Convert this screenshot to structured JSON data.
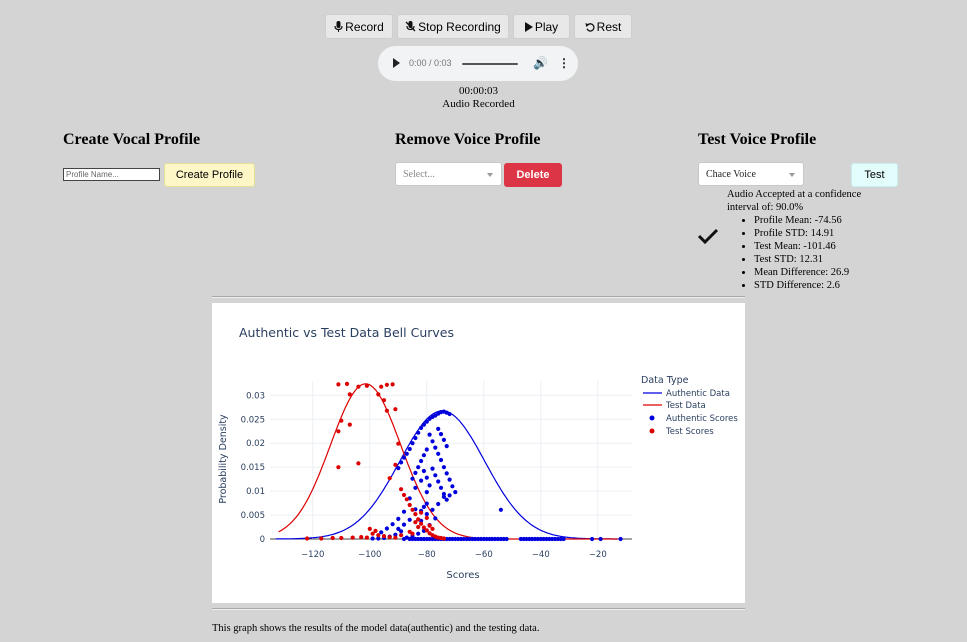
{
  "toolbar": {
    "record": "Record",
    "stop": "Stop Recording",
    "play": "Play",
    "reset": "Rest"
  },
  "audio_player": {
    "time": "0:00 / 0:03"
  },
  "recording": {
    "elapsed": "00:00:03",
    "status": "Audio Recorded"
  },
  "create_profile": {
    "heading": "Create Vocal Profile",
    "placeholder": "Profile Name...",
    "button": "Create Profile"
  },
  "remove_profile": {
    "heading": "Remove Voice Profile",
    "select_value": "Select...",
    "button": "Delete"
  },
  "test_profile": {
    "heading": "Test Voice Profile",
    "select_value": "Chace Voice",
    "button": "Test",
    "result_line1": "Audio Accepted at a confidence",
    "result_line2": "interval of: 90.0%",
    "stats": [
      "Profile Mean: -74.56",
      "Profile STD: 14.91",
      "Test Mean: -101.46",
      "Test STD: 12.31",
      "Mean Difference: 26.9",
      "STD Difference: 2.6"
    ]
  },
  "caption": "This graph shows the results of the model data(authentic) and the testing data.",
  "colors": {
    "authentic": "#0000dd",
    "test": "#dd0000",
    "delete": "#dc3545"
  },
  "chart_data": {
    "type": "line",
    "title": "Authentic vs Test Data Bell Curves",
    "xlabel": "Scores",
    "ylabel": "Probability Density",
    "xlim": [
      -135,
      -8
    ],
    "ylim": [
      0,
      0.033
    ],
    "x_ticks": [
      -120,
      -100,
      -80,
      -60,
      -40,
      -20
    ],
    "x_tick_labels": [
      "−120",
      "−100",
      "−80",
      "−60",
      "−40",
      "−20"
    ],
    "y_ticks": [
      0,
      0.005,
      0.01,
      0.015,
      0.02,
      0.025,
      0.03
    ],
    "y_tick_labels": [
      "0",
      "0.005",
      "0.01",
      "0.015",
      "0.02",
      "0.025",
      "0.03"
    ],
    "grid": true,
    "legend_title": "Data Type",
    "legend_position": "right",
    "series": [
      {
        "name": "Authentic Data",
        "kind": "normal-curve",
        "mean": -74.56,
        "std": 14.91,
        "x_range": [
          -133,
          -13
        ],
        "color": "#0000dd"
      },
      {
        "name": "Test Data",
        "kind": "normal-curve",
        "mean": -101.46,
        "std": 12.31,
        "x_range": [
          -132,
          -13
        ],
        "color": "#dd0000"
      },
      {
        "name": "Authentic Scores",
        "kind": "scatter",
        "color": "#0000dd",
        "points": [
          [
            -88,
            0.0
          ],
          [
            -86,
            0.0
          ],
          [
            -85,
            0.0
          ],
          [
            -84,
            0.0
          ],
          [
            -83,
            0.0
          ],
          [
            -82,
            0.0
          ],
          [
            -81,
            0.0
          ],
          [
            -80,
            0.0
          ],
          [
            -79,
            0.0
          ],
          [
            -78,
            0.0
          ],
          [
            -77,
            0.0
          ],
          [
            -76,
            0.0
          ],
          [
            -75,
            0.0
          ],
          [
            -74,
            0.0
          ],
          [
            -73,
            0.0
          ],
          [
            -72,
            0.0
          ],
          [
            -71,
            0.0
          ],
          [
            -70,
            0.0
          ],
          [
            -69,
            0.0
          ],
          [
            -68,
            0.0
          ],
          [
            -67,
            0.0
          ],
          [
            -66,
            0.0
          ],
          [
            -65,
            0.0
          ],
          [
            -64,
            0.0
          ],
          [
            -63,
            0.0
          ],
          [
            -62,
            0.0
          ],
          [
            -61,
            0.0
          ],
          [
            -60,
            0.0
          ],
          [
            -59,
            0.0
          ],
          [
            -58,
            0.0
          ],
          [
            -57,
            0.0
          ],
          [
            -56,
            0.0
          ],
          [
            -55,
            0.0
          ],
          [
            -54,
            0.0
          ],
          [
            -53,
            0.0
          ],
          [
            -52,
            0.0
          ],
          [
            -47,
            0.0
          ],
          [
            -46,
            0.0
          ],
          [
            -45,
            0.0
          ],
          [
            -44,
            0.0
          ],
          [
            -43,
            0.0
          ],
          [
            -42,
            0.0
          ],
          [
            -41,
            0.0
          ],
          [
            -40,
            0.0
          ],
          [
            -39,
            0.0
          ],
          [
            -38,
            0.0
          ],
          [
            -37,
            0.0
          ],
          [
            -36,
            0.0
          ],
          [
            -35,
            0.0
          ],
          [
            -34,
            0.0
          ],
          [
            -33,
            0.0
          ],
          [
            -32,
            0.0
          ],
          [
            -22,
            0.0
          ],
          [
            -19,
            0.0
          ],
          [
            -12,
            0.0
          ],
          [
            -86,
            0.0085
          ],
          [
            -84,
            0.0107
          ],
          [
            -82,
            0.0122
          ],
          [
            -80,
            0.0098
          ],
          [
            -88,
            0.0057
          ],
          [
            -90,
            0.0042
          ],
          [
            -92,
            0.0031
          ],
          [
            -94,
            0.0022
          ],
          [
            -96,
            0.0014
          ],
          [
            -84,
            0.0062
          ],
          [
            -86,
            0.004
          ],
          [
            -88,
            0.003
          ],
          [
            -90,
            0.0021
          ],
          [
            -82,
            0.0038
          ],
          [
            -80,
            0.0052
          ],
          [
            -78,
            0.0061
          ],
          [
            -76,
            0.0073
          ],
          [
            -74,
            0.0088
          ],
          [
            -72,
            0.0091
          ],
          [
            -77,
            0.0043
          ],
          [
            -79,
            0.0029
          ],
          [
            -81,
            0.0017
          ],
          [
            -83,
            0.0011
          ],
          [
            -85,
            0.0006
          ],
          [
            -87,
            0.0003
          ],
          [
            -89,
            0.0016
          ],
          [
            -91,
            0.0009
          ],
          [
            -93,
            0.0005
          ],
          [
            -95,
            0.0002
          ],
          [
            -97,
            0.0001
          ],
          [
            -99,
            0.0001
          ],
          [
            -76,
            0.0262
          ],
          [
            -75,
            0.0265
          ],
          [
            -74,
            0.0266
          ],
          [
            -73,
            0.0264
          ],
          [
            -72,
            0.0261
          ],
          [
            -77,
            0.0258
          ],
          [
            -78,
            0.0255
          ],
          [
            -79,
            0.0251
          ],
          [
            -80,
            0.0245
          ],
          [
            -81,
            0.0239
          ],
          [
            -82,
            0.0232
          ],
          [
            -83,
            0.0222
          ],
          [
            -84,
            0.0211
          ],
          [
            -85,
            0.02
          ],
          [
            -86,
            0.0188
          ],
          [
            -87,
            0.0178
          ],
          [
            -88,
            0.017
          ],
          [
            -89,
            0.016
          ],
          [
            -90,
            0.0148
          ],
          [
            -79,
            0.0218
          ],
          [
            -78,
            0.0204
          ],
          [
            -77,
            0.0191
          ],
          [
            -76,
            0.0178
          ],
          [
            -75,
            0.0165
          ],
          [
            -74,
            0.015
          ],
          [
            -73,
            0.0137
          ],
          [
            -72,
            0.0124
          ],
          [
            -71,
            0.011
          ],
          [
            -70,
            0.0098
          ],
          [
            -76,
            0.023
          ],
          [
            -75,
            0.0219
          ],
          [
            -74,
            0.0207
          ],
          [
            -73,
            0.0194
          ],
          [
            -80,
            0.0187
          ],
          [
            -81,
            0.0175
          ],
          [
            -82,
            0.0163
          ],
          [
            -83,
            0.015
          ],
          [
            -84,
            0.0138
          ],
          [
            -85,
            0.0126
          ],
          [
            -78,
            0.0147
          ],
          [
            -77,
            0.0133
          ],
          [
            -76,
            0.012
          ],
          [
            -75,
            0.0107
          ],
          [
            -74,
            0.0094
          ],
          [
            -73,
            0.0082
          ],
          [
            -80,
            0.0074
          ],
          [
            -81,
            0.0067
          ],
          [
            -82,
            0.0059
          ],
          [
            -79,
            0.0112
          ],
          [
            -80,
            0.0128
          ],
          [
            -81,
            0.0142
          ],
          [
            -54,
            0.0061
          ]
        ]
      },
      {
        "name": "Test Scores",
        "kind": "scatter",
        "color": "#dd0000",
        "points": [
          [
            -111,
            0.0323
          ],
          [
            -108,
            0.0324
          ],
          [
            -104,
            0.0318
          ],
          [
            -101,
            0.032
          ],
          [
            -96,
            0.0318
          ],
          [
            -94,
            0.0322
          ],
          [
            -92,
            0.0323
          ],
          [
            -107,
            0.0302
          ],
          [
            -97,
            0.0302
          ],
          [
            -95,
            0.029
          ],
          [
            -110,
            0.0247
          ],
          [
            -107,
            0.0239
          ],
          [
            -111,
            0.0225
          ],
          [
            -94,
            0.0268
          ],
          [
            -91,
            0.0271
          ],
          [
            -104,
            0.0158
          ],
          [
            -111,
            0.015
          ],
          [
            -93,
            0.0127
          ],
          [
            -91,
            0.0155
          ],
          [
            -90,
            0.0199
          ],
          [
            -89,
            0.0104
          ],
          [
            -88,
            0.0092
          ],
          [
            -87,
            0.0083
          ],
          [
            -86,
            0.0071
          ],
          [
            -85,
            0.0061
          ],
          [
            -84,
            0.0052
          ],
          [
            -83,
            0.0041
          ],
          [
            -82,
            0.0032
          ],
          [
            -81,
            0.0024
          ],
          [
            -80,
            0.0018
          ],
          [
            -79,
            0.0012
          ],
          [
            -78,
            0.0008
          ],
          [
            -77,
            0.0005
          ],
          [
            -76,
            0.0003
          ],
          [
            -75,
            0.0002
          ],
          [
            -74,
            0.0001
          ],
          [
            -122,
            0.0001
          ],
          [
            -117,
            0.0001
          ],
          [
            -113,
            0.0002
          ],
          [
            -110,
            0.0002
          ],
          [
            -106,
            0.0003
          ],
          [
            -103,
            0.0004
          ],
          [
            -101,
            0.0003
          ],
          [
            -100,
            0.0021
          ],
          [
            -98,
            0.0017
          ],
          [
            -99,
            0.0011
          ],
          [
            -97,
            0.0008
          ],
          [
            -95,
            0.0006
          ],
          [
            -93,
            0.0004
          ],
          [
            -91,
            0.0003
          ],
          [
            -89,
            0.0008
          ],
          [
            -86,
            0.0015
          ],
          [
            -84,
            0.0035
          ],
          [
            -82,
            0.0055
          ],
          [
            -80,
            0.0044
          ],
          [
            -79,
            0.0028
          ],
          [
            -78,
            0.0021
          ],
          [
            -83,
            0.0025
          ],
          [
            -85,
            0.0011
          ]
        ]
      }
    ]
  }
}
